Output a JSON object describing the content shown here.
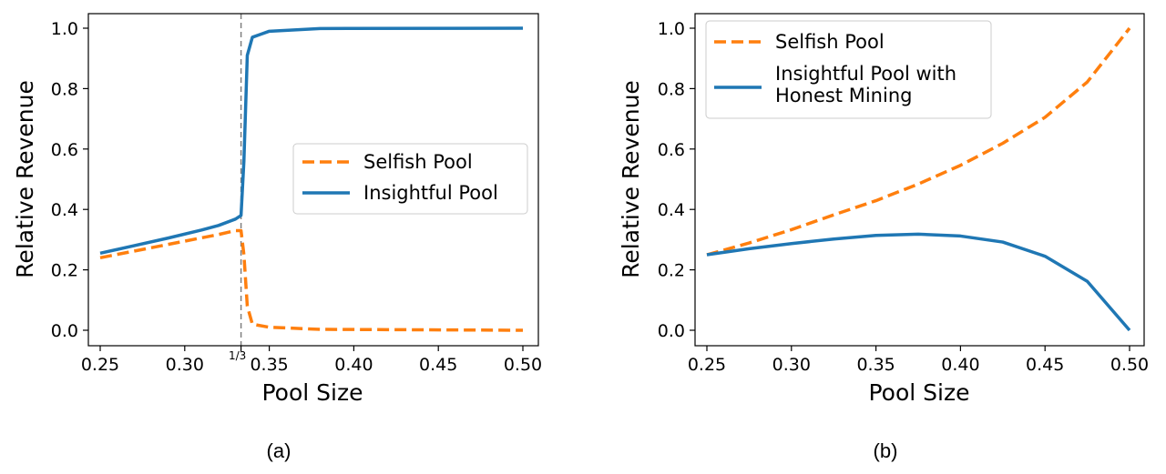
{
  "chart_data": [
    {
      "type": "line",
      "caption": "(a)",
      "xlabel": "Pool Size",
      "ylabel": "Relative Revenue",
      "xlim": [
        0.25,
        0.5
      ],
      "ylim": [
        0.0,
        1.0
      ],
      "xticks": [
        "0.25",
        "0.30",
        "0.35",
        "0.40",
        "0.45",
        "0.50"
      ],
      "yticks": [
        "0.0",
        "0.2",
        "0.4",
        "0.6",
        "0.8",
        "1.0"
      ],
      "extra_xtick": {
        "value": 0.3333,
        "label": "1/3"
      },
      "vline": {
        "x": 0.3333,
        "style": "dashed",
        "color": "#7f7f7f"
      },
      "legend": {
        "position": "center-right"
      },
      "series": [
        {
          "name": "Selfish Pool",
          "color": "#ff7f0e",
          "style": "dashed",
          "x": [
            0.25,
            0.27,
            0.29,
            0.31,
            0.32,
            0.33,
            0.3333,
            0.335,
            0.337,
            0.34,
            0.35,
            0.38,
            0.5
          ],
          "y": [
            0.24,
            0.262,
            0.284,
            0.306,
            0.317,
            0.33,
            0.33,
            0.25,
            0.08,
            0.02,
            0.01,
            0.003,
            0.0
          ]
        },
        {
          "name": "Insightful Pool",
          "color": "#1f77b4",
          "style": "solid",
          "x": [
            0.25,
            0.27,
            0.29,
            0.31,
            0.32,
            0.33,
            0.3333,
            0.335,
            0.337,
            0.34,
            0.345,
            0.35,
            0.38,
            0.5
          ],
          "y": [
            0.255,
            0.28,
            0.305,
            0.332,
            0.347,
            0.368,
            0.38,
            0.56,
            0.91,
            0.97,
            0.98,
            0.99,
            0.999,
            1.0
          ]
        }
      ]
    },
    {
      "type": "line",
      "caption": "(b)",
      "xlabel": "Pool Size",
      "ylabel": "Relative Revenue",
      "xlim": [
        0.25,
        0.5
      ],
      "ylim": [
        0.0,
        1.0
      ],
      "xticks": [
        "0.25",
        "0.30",
        "0.35",
        "0.40",
        "0.45",
        "0.50"
      ],
      "yticks": [
        "0.0",
        "0.2",
        "0.4",
        "0.6",
        "0.8",
        "1.0"
      ],
      "legend": {
        "position": "top-left"
      },
      "series": [
        {
          "name": "Selfish Pool",
          "color": "#ff7f0e",
          "style": "dashed",
          "x": [
            0.25,
            0.275,
            0.3,
            0.325,
            0.35,
            0.375,
            0.4,
            0.425,
            0.45,
            0.475,
            0.5
          ],
          "y": [
            0.25,
            0.289,
            0.333,
            0.382,
            0.429,
            0.484,
            0.546,
            0.619,
            0.705,
            0.822,
            1.0
          ]
        },
        {
          "name": "Insightful Pool with Honest Mining",
          "color": "#1f77b4",
          "style": "solid",
          "x": [
            0.25,
            0.275,
            0.3,
            0.325,
            0.35,
            0.375,
            0.4,
            0.425,
            0.45,
            0.475,
            0.5
          ],
          "y": [
            0.25,
            0.27,
            0.287,
            0.302,
            0.314,
            0.318,
            0.312,
            0.292,
            0.245,
            0.162,
            0.0
          ]
        }
      ]
    }
  ]
}
